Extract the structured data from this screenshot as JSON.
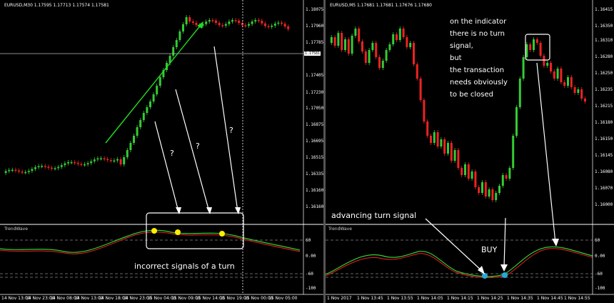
{
  "left_chart": {
    "symbol_header": "EURUSD,M30  1.17595 1.17713 1.17574 1.17581",
    "indicator_name": "TrendWave",
    "price_axis": [
      "1.18075",
      "1.17960",
      "1.17785",
      "1.17581",
      "1.17405",
      "1.17230",
      "1.17050",
      "1.16875",
      "1.16695",
      "1.16515",
      "1.16335",
      "1.16160",
      "1.16160"
    ],
    "current_price": "1.17581",
    "indicator_axis": [
      "60",
      "0.00",
      "-60",
      "-100"
    ],
    "time_labels": [
      "14 Nov 13:00",
      "14 Nov 23:00",
      "14 Nov 08:00",
      "14 Nov 13:00",
      "14 Nov 18:00",
      "14 Nov 23:00",
      "15 Nov 04:00",
      "15 Nov 09:00",
      "15 Nov 14:00",
      "15 Nov 19:00",
      "15 Nov 00:00",
      "15 Nov 05:00",
      "15 Nov 10:00"
    ],
    "question_marks": [
      "?",
      "?",
      "?"
    ],
    "caption": "incorrect signals of a turn"
  },
  "right_chart": {
    "symbol_header": "EURUSD,M5  1.17681 1.17681 1.17676 1.17680",
    "indicator_name": "TrendWave",
    "price_axis": [
      "1.16415",
      "1.16350",
      "1.16310",
      "1.16280",
      "1.16250",
      "1.16235",
      "1.16215",
      "1.16180",
      "1.16150",
      "1.16145",
      "1.16080",
      "1.16070",
      "1.16000"
    ],
    "indicator_axis": [
      "60",
      "0.00",
      "-60",
      "-100"
    ],
    "time_labels": [
      "1 Nov 2017",
      "1 Nov 13:45",
      "1 Nov 13:55",
      "1 Nov 14:05",
      "1 Nov 14:15",
      "1 Nov 14:25",
      "1 Nov 14:35",
      "1 Nov 14:45",
      "1 Nov 14:55"
    ],
    "annotation_lines": [
      "on the indicator",
      "there is no turn",
      "signal,",
      "but",
      "the transaction",
      "needs obviously",
      "to be closed"
    ],
    "advancing_label": "advancing turn signal",
    "buy_label": "BUY"
  },
  "colors": {
    "bull": "#33cc33",
    "bear": "#ee2222",
    "background": "#000000",
    "signal_yellow": "#ffee00",
    "signal_cyan": "#22aadd"
  }
}
